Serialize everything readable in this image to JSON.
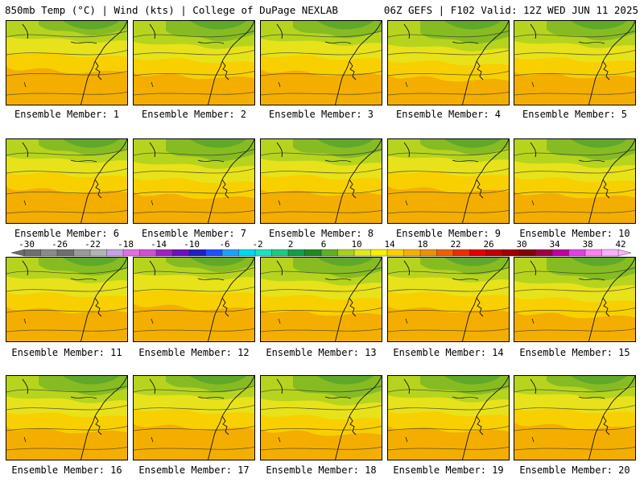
{
  "header": {
    "left": "850mb Temp (°C) | Wind (kts) | College of DuPage NEXLAB",
    "right": "06Z GEFS | F102 Valid: 12Z WED JUN 11 2025"
  },
  "panel_label_prefix": "Ensemble Member: ",
  "members": [
    {
      "id": "1",
      "caption": "Ensemble Member: 1"
    },
    {
      "id": "2",
      "caption": "Ensemble Member: 2"
    },
    {
      "id": "3",
      "caption": "Ensemble Member: 3"
    },
    {
      "id": "4",
      "caption": "Ensemble Member: 4"
    },
    {
      "id": "5",
      "caption": "Ensemble Member: 5"
    },
    {
      "id": "6",
      "caption": "Ensemble Member: 6"
    },
    {
      "id": "7",
      "caption": "Ensemble Member: 7"
    },
    {
      "id": "8",
      "caption": "Ensemble Member: 8"
    },
    {
      "id": "9",
      "caption": "Ensemble Member: 9"
    },
    {
      "id": "10",
      "caption": "Ensemble Member: 10"
    },
    {
      "id": "11",
      "caption": "Ensemble Member: 11"
    },
    {
      "id": "12",
      "caption": "Ensemble Member: 12"
    },
    {
      "id": "13",
      "caption": "Ensemble Member: 13"
    },
    {
      "id": "14",
      "caption": "Ensemble Member: 14"
    },
    {
      "id": "15",
      "caption": "Ensemble Member: 15"
    },
    {
      "id": "16",
      "caption": "Ensemble Member: 16"
    },
    {
      "id": "17",
      "caption": "Ensemble Member: 17"
    },
    {
      "id": "18",
      "caption": "Ensemble Member: 18"
    },
    {
      "id": "19",
      "caption": "Ensemble Member: 19"
    },
    {
      "id": "20",
      "caption": "Ensemble Member: 20"
    }
  ],
  "colorbar": {
    "tick_labels": [
      "-30",
      "-26",
      "-22",
      "-18",
      "-14",
      "-10",
      "-6",
      "-2",
      "2",
      "6",
      "10",
      "14",
      "18",
      "22",
      "26",
      "30",
      "34",
      "38",
      "42"
    ],
    "colors": [
      "#6e6e6e",
      "#8a8a8a",
      "#6f6f6f",
      "#9a9a9a",
      "#b4b4b4",
      "#c8a0e6",
      "#e070e0",
      "#d050d0",
      "#a020c0",
      "#6a10c0",
      "#2020c0",
      "#1e50ff",
      "#1ea0ff",
      "#00d8f0",
      "#20e0c0",
      "#20c880",
      "#10a040",
      "#208820",
      "#60b020",
      "#a8d020",
      "#e0e820",
      "#f8f000",
      "#ffd000",
      "#f8b000",
      "#f09000",
      "#f06000",
      "#e83000",
      "#e00000",
      "#c00000",
      "#a00000",
      "#800000",
      "#a00040",
      "#c000a0",
      "#e040e0",
      "#ff80f0",
      "#ffb0ff"
    ]
  }
}
